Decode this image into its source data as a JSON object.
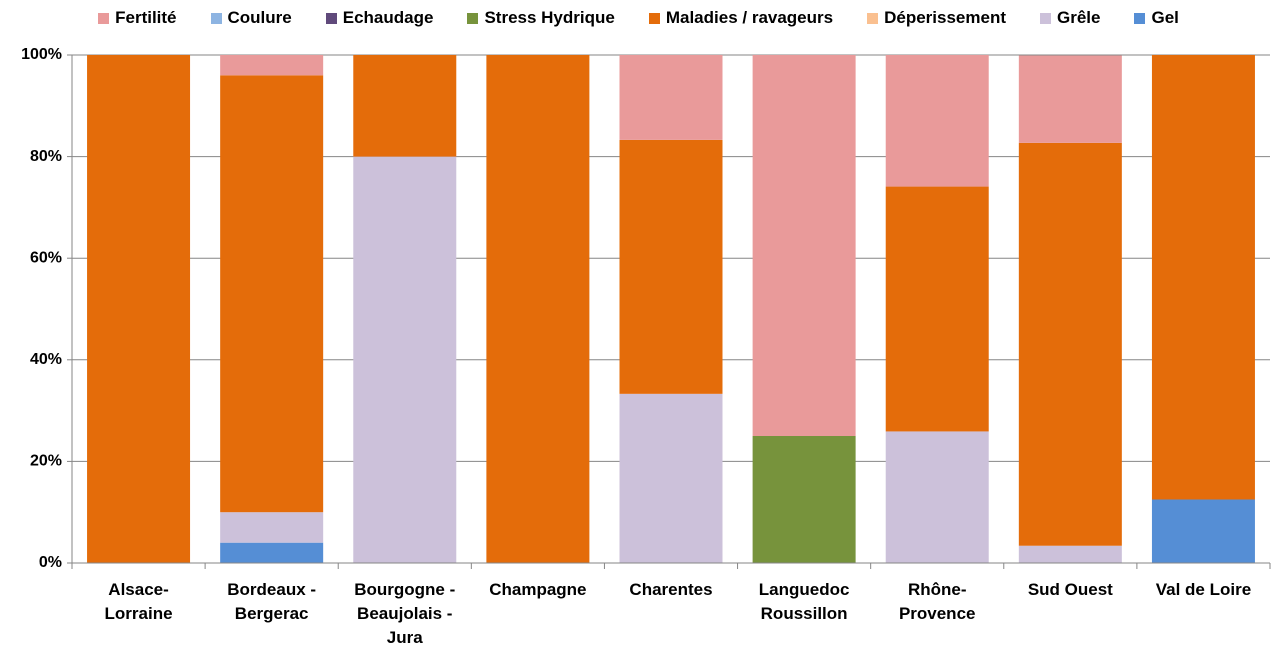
{
  "chart_data": {
    "type": "stacked_bar",
    "categories": [
      "Alsace-Lorraine",
      "Bordeaux - Bergerac",
      "Bourgogne - Beaujolais - Jura",
      "Champagne",
      "Charentes",
      "Languedoc Roussillon",
      "Rhône-Provence",
      "Sud Ouest",
      "Val de Loire"
    ],
    "series": [
      {
        "name": "Fertilité",
        "color": "#e99a9a",
        "values": [
          0,
          4,
          0,
          0,
          16.7,
          75,
          25.9,
          17.2,
          0
        ]
      },
      {
        "name": "Coulure",
        "color": "#8db4e2",
        "values": [
          0,
          0,
          0,
          0,
          0,
          0,
          0,
          0,
          0
        ]
      },
      {
        "name": "Echaudage",
        "color": "#604a7b",
        "values": [
          0,
          0,
          0,
          0,
          0,
          0,
          0,
          0,
          0
        ]
      },
      {
        "name": "Stress Hydrique",
        "color": "#77933c",
        "values": [
          0,
          0,
          0,
          0,
          0,
          25,
          0,
          0,
          0
        ]
      },
      {
        "name": "Maladies / ravageurs",
        "color": "#e46c0a",
        "values": [
          100,
          86,
          20,
          100,
          50,
          0,
          48.2,
          79.3,
          87.5
        ]
      },
      {
        "name": "Déperissement",
        "color": "#fac090",
        "values": [
          0,
          0,
          0,
          0,
          0,
          0,
          0,
          0,
          0
        ]
      },
      {
        "name": "Grêle",
        "color": "#ccc1da",
        "values": [
          0,
          6,
          80,
          0,
          33.3,
          0,
          25.9,
          3.4,
          0
        ]
      },
      {
        "name": "Gel",
        "color": "#558ed5",
        "values": [
          0,
          4,
          0,
          0,
          0,
          0,
          0,
          0,
          12.5
        ]
      }
    ],
    "ylim": [
      0,
      100
    ],
    "yticks": [
      {
        "value": 0,
        "label": "0%"
      },
      {
        "value": 20,
        "label": "20%"
      },
      {
        "value": 40,
        "label": "40%"
      },
      {
        "value": 60,
        "label": "60%"
      },
      {
        "value": 80,
        "label": "80%"
      },
      {
        "value": 100,
        "label": "100%"
      }
    ],
    "grid": true,
    "legend": "top"
  }
}
